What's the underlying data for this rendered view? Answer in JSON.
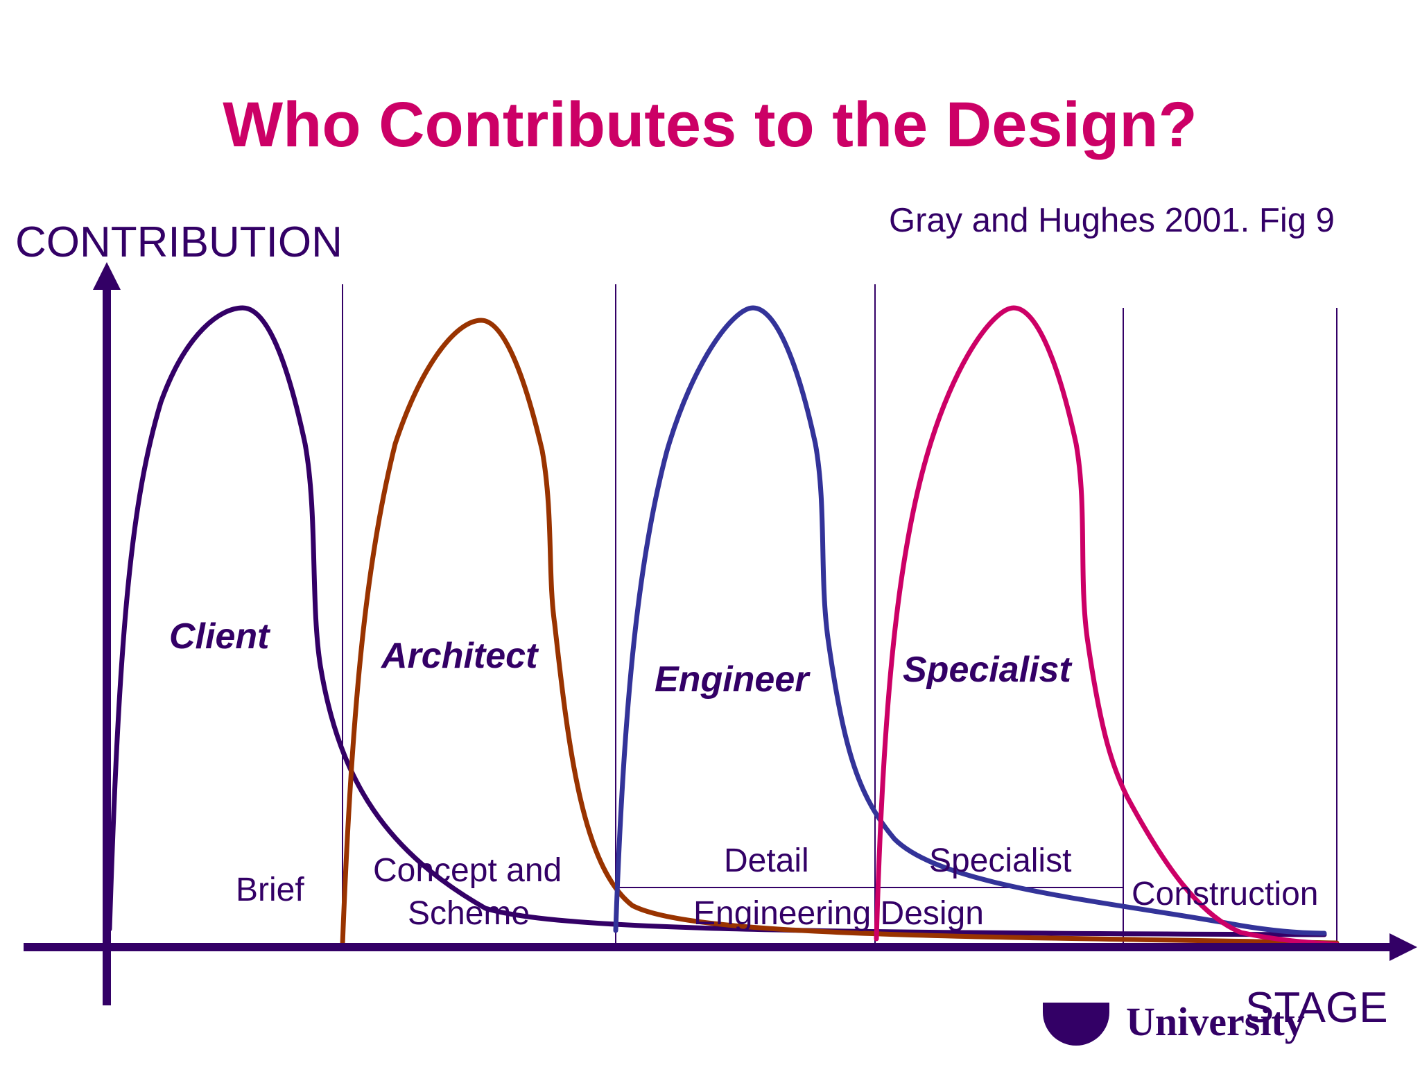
{
  "title": "Who Contributes to the Design?",
  "citation": "Gray and Hughes 2001. Fig 9",
  "axes": {
    "y_label": "CONTRIBUTION",
    "x_label": "STAGE"
  },
  "actors": [
    {
      "name": "Client",
      "color": "#330066"
    },
    {
      "name": "Architect",
      "color": "#993300"
    },
    {
      "name": "Engineer",
      "color": "#333399"
    },
    {
      "name": "Specialist",
      "color": "#cc0066"
    }
  ],
  "stages": {
    "brief": "Brief",
    "concept_1": "Concept and",
    "concept_2": "Scheme",
    "detail": "Detail",
    "specialist": "Specialist",
    "engineering_design": "Engineering Design",
    "construction": "Construction"
  },
  "logo": {
    "text": "University"
  },
  "colors": {
    "title": "#cc0066",
    "text": "#330066",
    "axis": "#330066"
  }
}
